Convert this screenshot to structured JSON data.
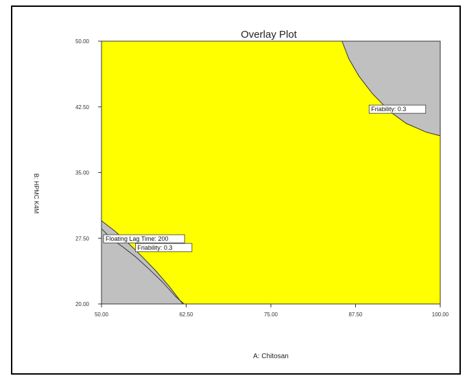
{
  "chart_data": {
    "type": "contour",
    "title": "Overlay Plot",
    "xlabel": "A: Chitosan",
    "ylabel": "B: HPMC K4M",
    "xlim": [
      50.0,
      100.0
    ],
    "ylim": [
      20.0,
      50.0
    ],
    "x_ticks": [
      "50.00",
      "62.50",
      "75.00",
      "87.50",
      "100.00"
    ],
    "y_ticks": [
      "20.00",
      "27.50",
      "35.00",
      "42.50",
      "50.00"
    ],
    "regions": [
      {
        "name": "design-space",
        "color": "#ffff00"
      },
      {
        "name": "excluded",
        "color": "#c0c0c0"
      }
    ],
    "contours": [
      {
        "label": "Friability: 0.3",
        "points": [
          [
            85.5,
            50.0
          ],
          [
            86.5,
            48.0
          ],
          [
            88.0,
            46.0
          ],
          [
            90.0,
            44.0
          ],
          [
            92.5,
            42.0
          ],
          [
            95.0,
            40.6
          ],
          [
            98.0,
            39.6
          ],
          [
            100.0,
            39.2
          ]
        ]
      },
      {
        "label": "Friability: 0.3",
        "points": [
          [
            50.0,
            29.5
          ],
          [
            52.0,
            28.3
          ],
          [
            54.0,
            26.9
          ],
          [
            56.0,
            25.4
          ],
          [
            58.0,
            23.8
          ],
          [
            60.0,
            22.0
          ],
          [
            62.0,
            20.0
          ]
        ]
      },
      {
        "label": "Floating Lag Time: 200",
        "points": [
          [
            50.0,
            28.6
          ],
          [
            51.5,
            27.4
          ],
          [
            53.0,
            26.6
          ],
          [
            55.0,
            25.4
          ],
          [
            57.0,
            24.0
          ],
          [
            59.0,
            22.5
          ],
          [
            61.0,
            20.8
          ],
          [
            62.2,
            20.0
          ]
        ]
      }
    ],
    "annotations": [
      {
        "text": "Friability: 0.3",
        "x": 89.5,
        "y": 42.0
      },
      {
        "text": "Floating Lag Time: 200",
        "x": 50.3,
        "y": 27.2
      },
      {
        "text": "Friability: 0.3",
        "x": 55.0,
        "y": 26.2
      }
    ]
  }
}
